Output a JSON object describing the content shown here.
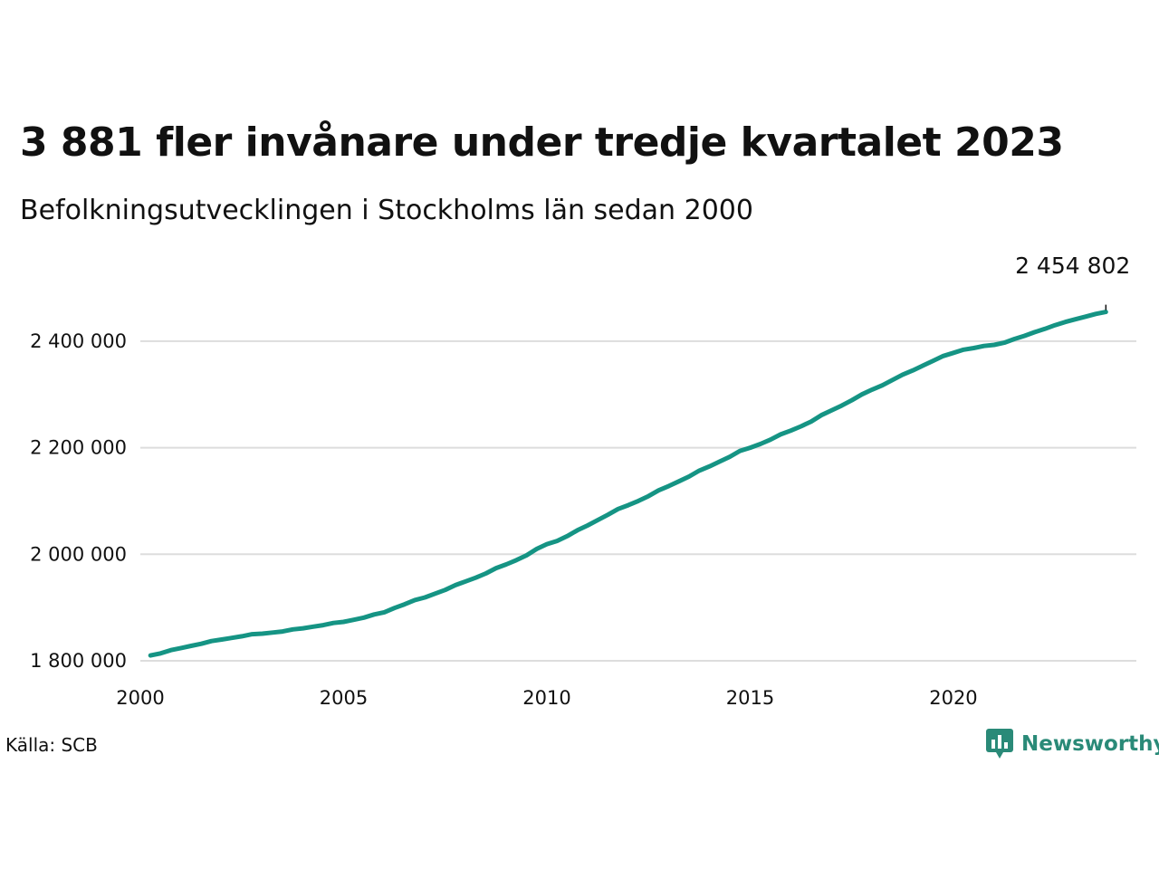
{
  "header": {
    "title": "3 881 fler invånare under tredje kvartalet 2023",
    "subtitle": "Befolkningsutvecklingen i Stockholms län sedan 2000"
  },
  "footer": {
    "source": "Källa: SCB",
    "brand": "Newsworthy",
    "brand_icon": "newsworthy-logo-icon"
  },
  "colors": {
    "line": "#159484",
    "grid": "#dddddd",
    "brand": "#2a8a78"
  },
  "chart_data": {
    "type": "line",
    "title": "3 881 fler invånare under tredje kvartalet 2023",
    "subtitle": "Befolkningsutvecklingen i Stockholms län sedan 2000",
    "xlabel": "",
    "ylabel": "",
    "xlim": [
      2000,
      2024.5
    ],
    "ylim": [
      1800000,
      2500000
    ],
    "y_ticks": [
      1800000,
      2000000,
      2200000,
      2400000
    ],
    "y_tick_labels": [
      "1 800 000",
      "2 000 000",
      "2 200 000",
      "2 400 000"
    ],
    "x_ticks": [
      2000,
      2005,
      2010,
      2015,
      2020
    ],
    "x_tick_labels": [
      "2000",
      "2005",
      "2010",
      "2015",
      "2020"
    ],
    "grid": true,
    "end_label": "2 454 802",
    "series": [
      {
        "x": [
          2000.25,
          2000.5,
          2000.75,
          2001.0,
          2001.25,
          2001.5,
          2001.75,
          2002.0,
          2002.25,
          2002.5,
          2002.75,
          2003.0,
          2003.25,
          2003.5,
          2003.75,
          2004.0,
          2004.25,
          2004.5,
          2004.75,
          2005.0,
          2005.25,
          2005.5,
          2005.75,
          2006.0,
          2006.25,
          2006.5,
          2006.75,
          2007.0,
          2007.25,
          2007.5,
          2007.75,
          2008.0,
          2008.25,
          2008.5,
          2008.75,
          2009.0,
          2009.25,
          2009.5,
          2009.75,
          2010.0,
          2010.25,
          2010.5,
          2010.75,
          2011.0,
          2011.25,
          2011.5,
          2011.75,
          2012.0,
          2012.25,
          2012.5,
          2012.75,
          2013.0,
          2013.25,
          2013.5,
          2013.75,
          2014.0,
          2014.25,
          2014.5,
          2014.75,
          2015.0,
          2015.25,
          2015.5,
          2015.75,
          2016.0,
          2016.25,
          2016.5,
          2016.75,
          2017.0,
          2017.25,
          2017.5,
          2017.75,
          2018.0,
          2018.25,
          2018.5,
          2018.75,
          2019.0,
          2019.25,
          2019.5,
          2019.75,
          2020.0,
          2020.25,
          2020.5,
          2020.75,
          2021.0,
          2021.25,
          2021.5,
          2021.75,
          2022.0,
          2022.25,
          2022.5,
          2022.75,
          2023.0,
          2023.25,
          2023.5,
          2023.75
        ],
        "values": [
          1810000,
          1814000,
          1820000,
          1824000,
          1828000,
          1832000,
          1837000,
          1840000,
          1843000,
          1846000,
          1850000,
          1851000,
          1853000,
          1855000,
          1859000,
          1861000,
          1864000,
          1867000,
          1871000,
          1873000,
          1877000,
          1881000,
          1887000,
          1891000,
          1899000,
          1906000,
          1914000,
          1919000,
          1926000,
          1933000,
          1942000,
          1949000,
          1956000,
          1964000,
          1974000,
          1981000,
          1989000,
          1998000,
          2010000,
          2019000,
          2025000,
          2034000,
          2045000,
          2054000,
          2064000,
          2074000,
          2085000,
          2092000,
          2100000,
          2109000,
          2120000,
          2128000,
          2137000,
          2146000,
          2157000,
          2165000,
          2174000,
          2183000,
          2194000,
          2200000,
          2207000,
          2215000,
          2225000,
          2232000,
          2240000,
          2249000,
          2261000,
          2270000,
          2279000,
          2289000,
          2300000,
          2309000,
          2317000,
          2327000,
          2337000,
          2345000,
          2354000,
          2363000,
          2372000,
          2378000,
          2384000,
          2387000,
          2391000,
          2393000,
          2397000,
          2404000,
          2410000,
          2417000,
          2423000,
          2430000,
          2436000,
          2441000,
          2446000,
          2451000,
          2454802
        ]
      }
    ]
  }
}
